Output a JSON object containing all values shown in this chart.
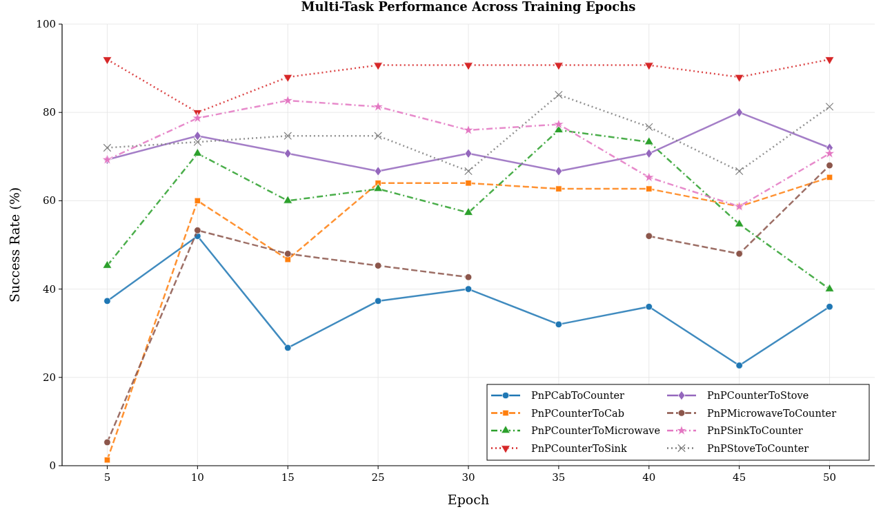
{
  "chart_data": {
    "type": "line",
    "title": "Multi-Task Performance Across Training Epochs",
    "xlabel": "Epoch",
    "ylabel": "Success Rate (%)",
    "categories": [
      "5",
      "10",
      "15",
      "25",
      "30",
      "35",
      "40",
      "45",
      "50"
    ],
    "ylim": [
      0,
      100
    ],
    "yticks": [
      0,
      20,
      40,
      60,
      80,
      100
    ],
    "grid": true,
    "legend": "bottom right",
    "series": [
      {
        "name": "PnPCabToCounter",
        "color": "#1f77b4",
        "line_style": "solid",
        "marker": "circle",
        "values": [
          37.3,
          52,
          26.7,
          37.3,
          40,
          32,
          36,
          22.7,
          36
        ]
      },
      {
        "name": "PnPCounterToCab",
        "color": "#ff7f0e",
        "line_style": "dashed",
        "marker": "square",
        "values": [
          1.3,
          60,
          46.7,
          64,
          64,
          62.7,
          62.7,
          58.7,
          65.3
        ]
      },
      {
        "name": "PnPCounterToMicrowave",
        "color": "#2ca02c",
        "line_style": "dashdot",
        "marker": "triangle",
        "values": [
          45.3,
          70.7,
          60,
          62.7,
          57.3,
          76,
          73.3,
          54.7,
          40
        ]
      },
      {
        "name": "PnPCounterToSink",
        "color": "#d62728",
        "line_style": "dotted",
        "marker": "triangle-down",
        "values": [
          92,
          80,
          88,
          90.7,
          90.7,
          90.7,
          90.7,
          88,
          92
        ]
      },
      {
        "name": "PnPCounterToStove",
        "color": "#9467bd",
        "line_style": "solid",
        "marker": "diamond",
        "values": [
          69.3,
          74.7,
          70.7,
          66.7,
          70.7,
          66.7,
          70.7,
          80,
          72
        ]
      },
      {
        "name": "PnPMicrowaveToCounter",
        "color": "#8c564b",
        "line_style": "dashed",
        "marker": "circle",
        "values": [
          5.3,
          53.3,
          48,
          45.3,
          42.7,
          null,
          52,
          48,
          68
        ]
      },
      {
        "name": "PnPSinkToCounter",
        "color": "#e377c2",
        "line_style": "dashdot",
        "marker": "star",
        "values": [
          69.3,
          78.7,
          82.7,
          81.3,
          76,
          77.3,
          65.3,
          58.7,
          70.7
        ]
      },
      {
        "name": "PnPStoveToCounter",
        "color": "#7f7f7f",
        "line_style": "dotted",
        "marker": "cross",
        "values": [
          72,
          73.3,
          74.7,
          74.7,
          66.7,
          84,
          76.7,
          66.7,
          81.3
        ]
      }
    ]
  }
}
